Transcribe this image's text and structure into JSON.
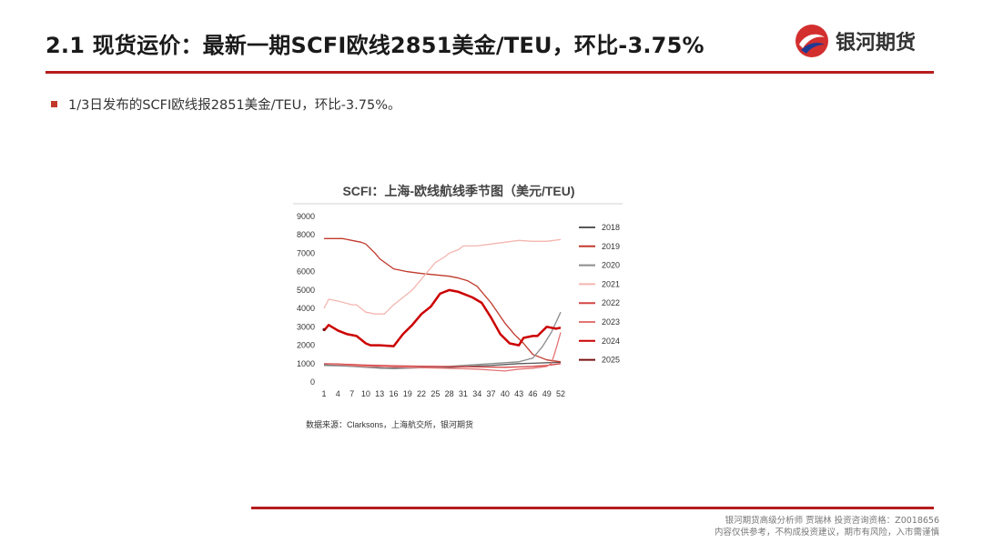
{
  "header": {
    "title": "2.1 现货运价：最新一期SCFI欧线2851美金/TEU，环比-3.75%",
    "brand_name": "银河期货"
  },
  "bullets": [
    "1/3日发布的SCFI欧线报2851美金/TEU，环比-3.75%。"
  ],
  "footer": {
    "line1": "银河期货高级分析师 贾瑞林 投资咨询资格：Z0018656",
    "line2": "内容仅供参考，不构成投资建议，期市有风险，入市需谨慎"
  },
  "colors": {
    "accent": "#b71c1c",
    "brand_red": "#d32f2f"
  },
  "chart_data": {
    "type": "line",
    "title": "SCFI：上海-欧线航线季节图（美元/TEU)",
    "source": "数据来源：Clarksons，上海航交所，银河期货",
    "xlabel": "",
    "ylabel": "",
    "x_ticks": [
      1,
      4,
      7,
      10,
      13,
      16,
      19,
      22,
      25,
      28,
      31,
      34,
      37,
      40,
      43,
      46,
      49,
      52
    ],
    "xlim": [
      1,
      52
    ],
    "ylim": [
      0,
      9000
    ],
    "y_ticks": [
      0,
      1000,
      2000,
      3000,
      4000,
      5000,
      6000,
      7000,
      8000,
      9000
    ],
    "grid": false,
    "legend_position": "right",
    "series": [
      {
        "name": "2018",
        "color": "#595959",
        "width": 1.3,
        "x": [
          1,
          5,
          10,
          14,
          16,
          20,
          24,
          28,
          31,
          34,
          37,
          40,
          43,
          46,
          49,
          52
        ],
        "values": [
          950,
          900,
          820,
          760,
          750,
          790,
          820,
          800,
          830,
          870,
          900,
          950,
          1000,
          1020,
          1050,
          1070
        ]
      },
      {
        "name": "2019",
        "color": "#c0392b",
        "width": 1.3,
        "x": [
          1,
          5,
          7,
          9,
          10,
          12,
          13,
          16,
          19,
          22,
          24,
          26,
          28,
          30,
          32,
          34,
          37,
          40,
          42,
          44,
          46,
          49,
          52
        ],
        "values": [
          7800,
          7800,
          7700,
          7600,
          7500,
          7000,
          6700,
          6150,
          6000,
          5900,
          5850,
          5800,
          5750,
          5650,
          5500,
          5200,
          4300,
          3200,
          2600,
          2100,
          1500,
          1200,
          1100
        ]
      },
      {
        "name": "2020",
        "color": "#8c8c8c",
        "width": 1.3,
        "x": [
          1,
          4,
          7,
          10,
          13,
          16,
          19,
          22,
          25,
          28,
          31,
          34,
          37,
          40,
          43,
          46,
          48,
          50,
          52
        ],
        "values": [
          900,
          880,
          850,
          800,
          750,
          720,
          750,
          780,
          820,
          850,
          900,
          950,
          1000,
          1050,
          1100,
          1300,
          1900,
          2700,
          3800
        ]
      },
      {
        "name": "2021",
        "color": "#f4b6b0",
        "width": 1.3,
        "x": [
          1,
          2,
          4,
          7,
          8,
          10,
          12,
          14,
          16,
          18,
          20,
          22,
          24,
          25,
          27,
          28,
          30,
          31,
          33,
          34,
          37,
          40,
          43,
          46,
          49,
          52
        ],
        "values": [
          4000,
          4500,
          4400,
          4200,
          4200,
          3800,
          3700,
          3700,
          4200,
          4600,
          5000,
          5600,
          6200,
          6500,
          6800,
          7000,
          7200,
          7400,
          7400,
          7400,
          7500,
          7600,
          7700,
          7650,
          7650,
          7750
        ]
      },
      {
        "name": "2022",
        "color": "#d64545",
        "width": 1.3,
        "x": [
          1,
          4,
          7,
          10,
          13,
          16,
          19,
          22,
          25,
          28,
          31,
          34,
          37,
          40,
          43,
          46,
          49,
          52
        ],
        "values": [
          1000,
          980,
          950,
          920,
          900,
          880,
          870,
          860,
          850,
          840,
          830,
          820,
          810,
          800,
          820,
          850,
          900,
          1000
        ]
      },
      {
        "name": "2023",
        "color": "#e57373",
        "width": 1.3,
        "x": [
          1,
          4,
          7,
          10,
          13,
          16,
          19,
          22,
          25,
          28,
          31,
          34,
          37,
          40,
          43,
          46,
          49,
          50,
          51,
          52
        ],
        "values": [
          1000,
          950,
          900,
          850,
          850,
          820,
          800,
          780,
          760,
          740,
          720,
          700,
          650,
          600,
          700,
          750,
          850,
          1000,
          1800,
          2700
        ]
      },
      {
        "name": "2024",
        "color": "#cc0000",
        "width": 2.5,
        "x": [
          1,
          2,
          4,
          6,
          8,
          10,
          11,
          13,
          16,
          18,
          20,
          22,
          24,
          26,
          27,
          28,
          30,
          31,
          33,
          35,
          37,
          39,
          41,
          43,
          44,
          46,
          47,
          49,
          51,
          52
        ],
        "values": [
          2800,
          3100,
          2800,
          2600,
          2500,
          2100,
          2000,
          2000,
          1950,
          2600,
          3100,
          3700,
          4100,
          4800,
          4900,
          5000,
          4900,
          4800,
          4600,
          4300,
          3500,
          2600,
          2100,
          2000,
          2400,
          2500,
          2500,
          3000,
          2900,
          2950
        ]
      },
      {
        "name": "2025",
        "color": "#7b1010",
        "width": 2.5,
        "x": [
          1
        ],
        "values": [
          2851
        ]
      }
    ]
  }
}
